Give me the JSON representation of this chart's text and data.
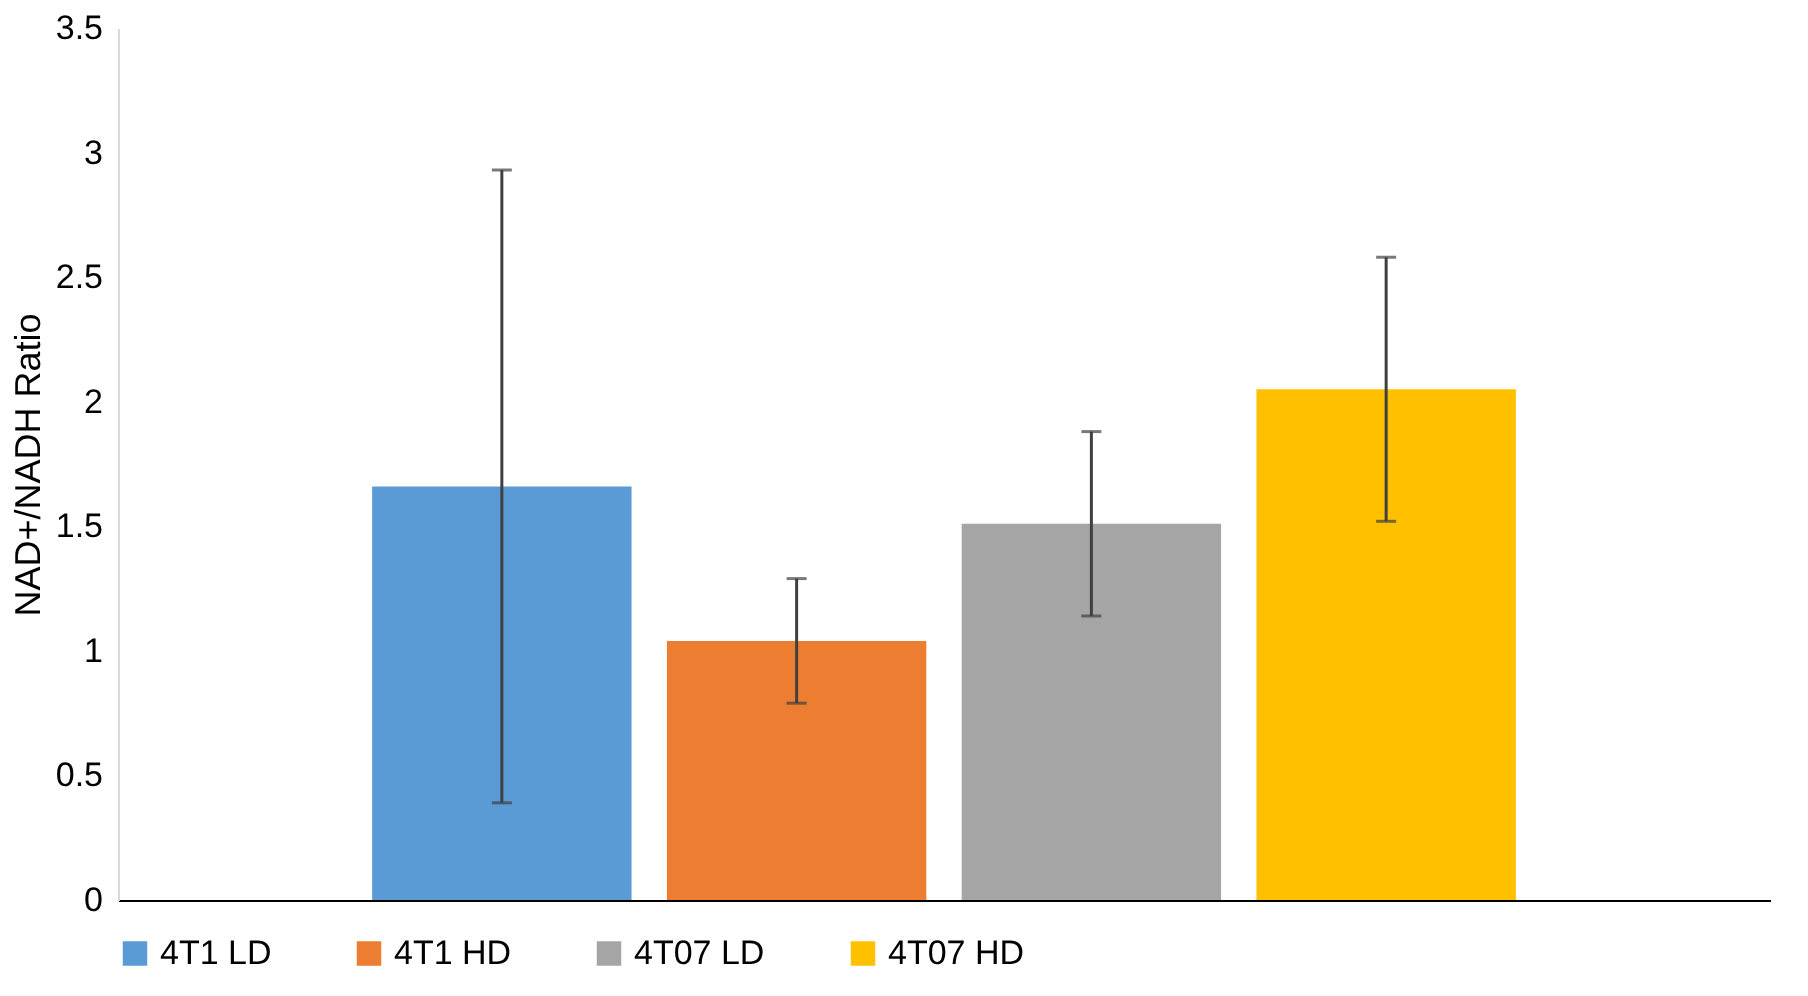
{
  "chart_data": {
    "type": "bar",
    "ylabel": "NAD+/NADH Ratio",
    "categories": [
      null
    ],
    "series": [
      {
        "name": "4T1 LD",
        "color": "#5b9bd5",
        "values": [
          1.66
        ],
        "errors": [
          1.27
        ]
      },
      {
        "name": "4T1 HD",
        "color": "#ed7d31",
        "values": [
          1.04
        ],
        "errors": [
          0.25
        ]
      },
      {
        "name": "4T07 LD",
        "color": "#a5a5a5",
        "values": [
          1.51
        ],
        "errors": [
          0.37
        ]
      },
      {
        "name": "4T07 HD",
        "color": "#ffc000",
        "values": [
          2.05
        ],
        "errors": [
          0.53
        ]
      }
    ],
    "ylim": [
      0,
      3.5
    ],
    "yticks": [
      0,
      0.5,
      1,
      1.5,
      2,
      2.5,
      3,
      3.5
    ],
    "grid": false,
    "legend": "bottom",
    "tick_labels": "y"
  }
}
